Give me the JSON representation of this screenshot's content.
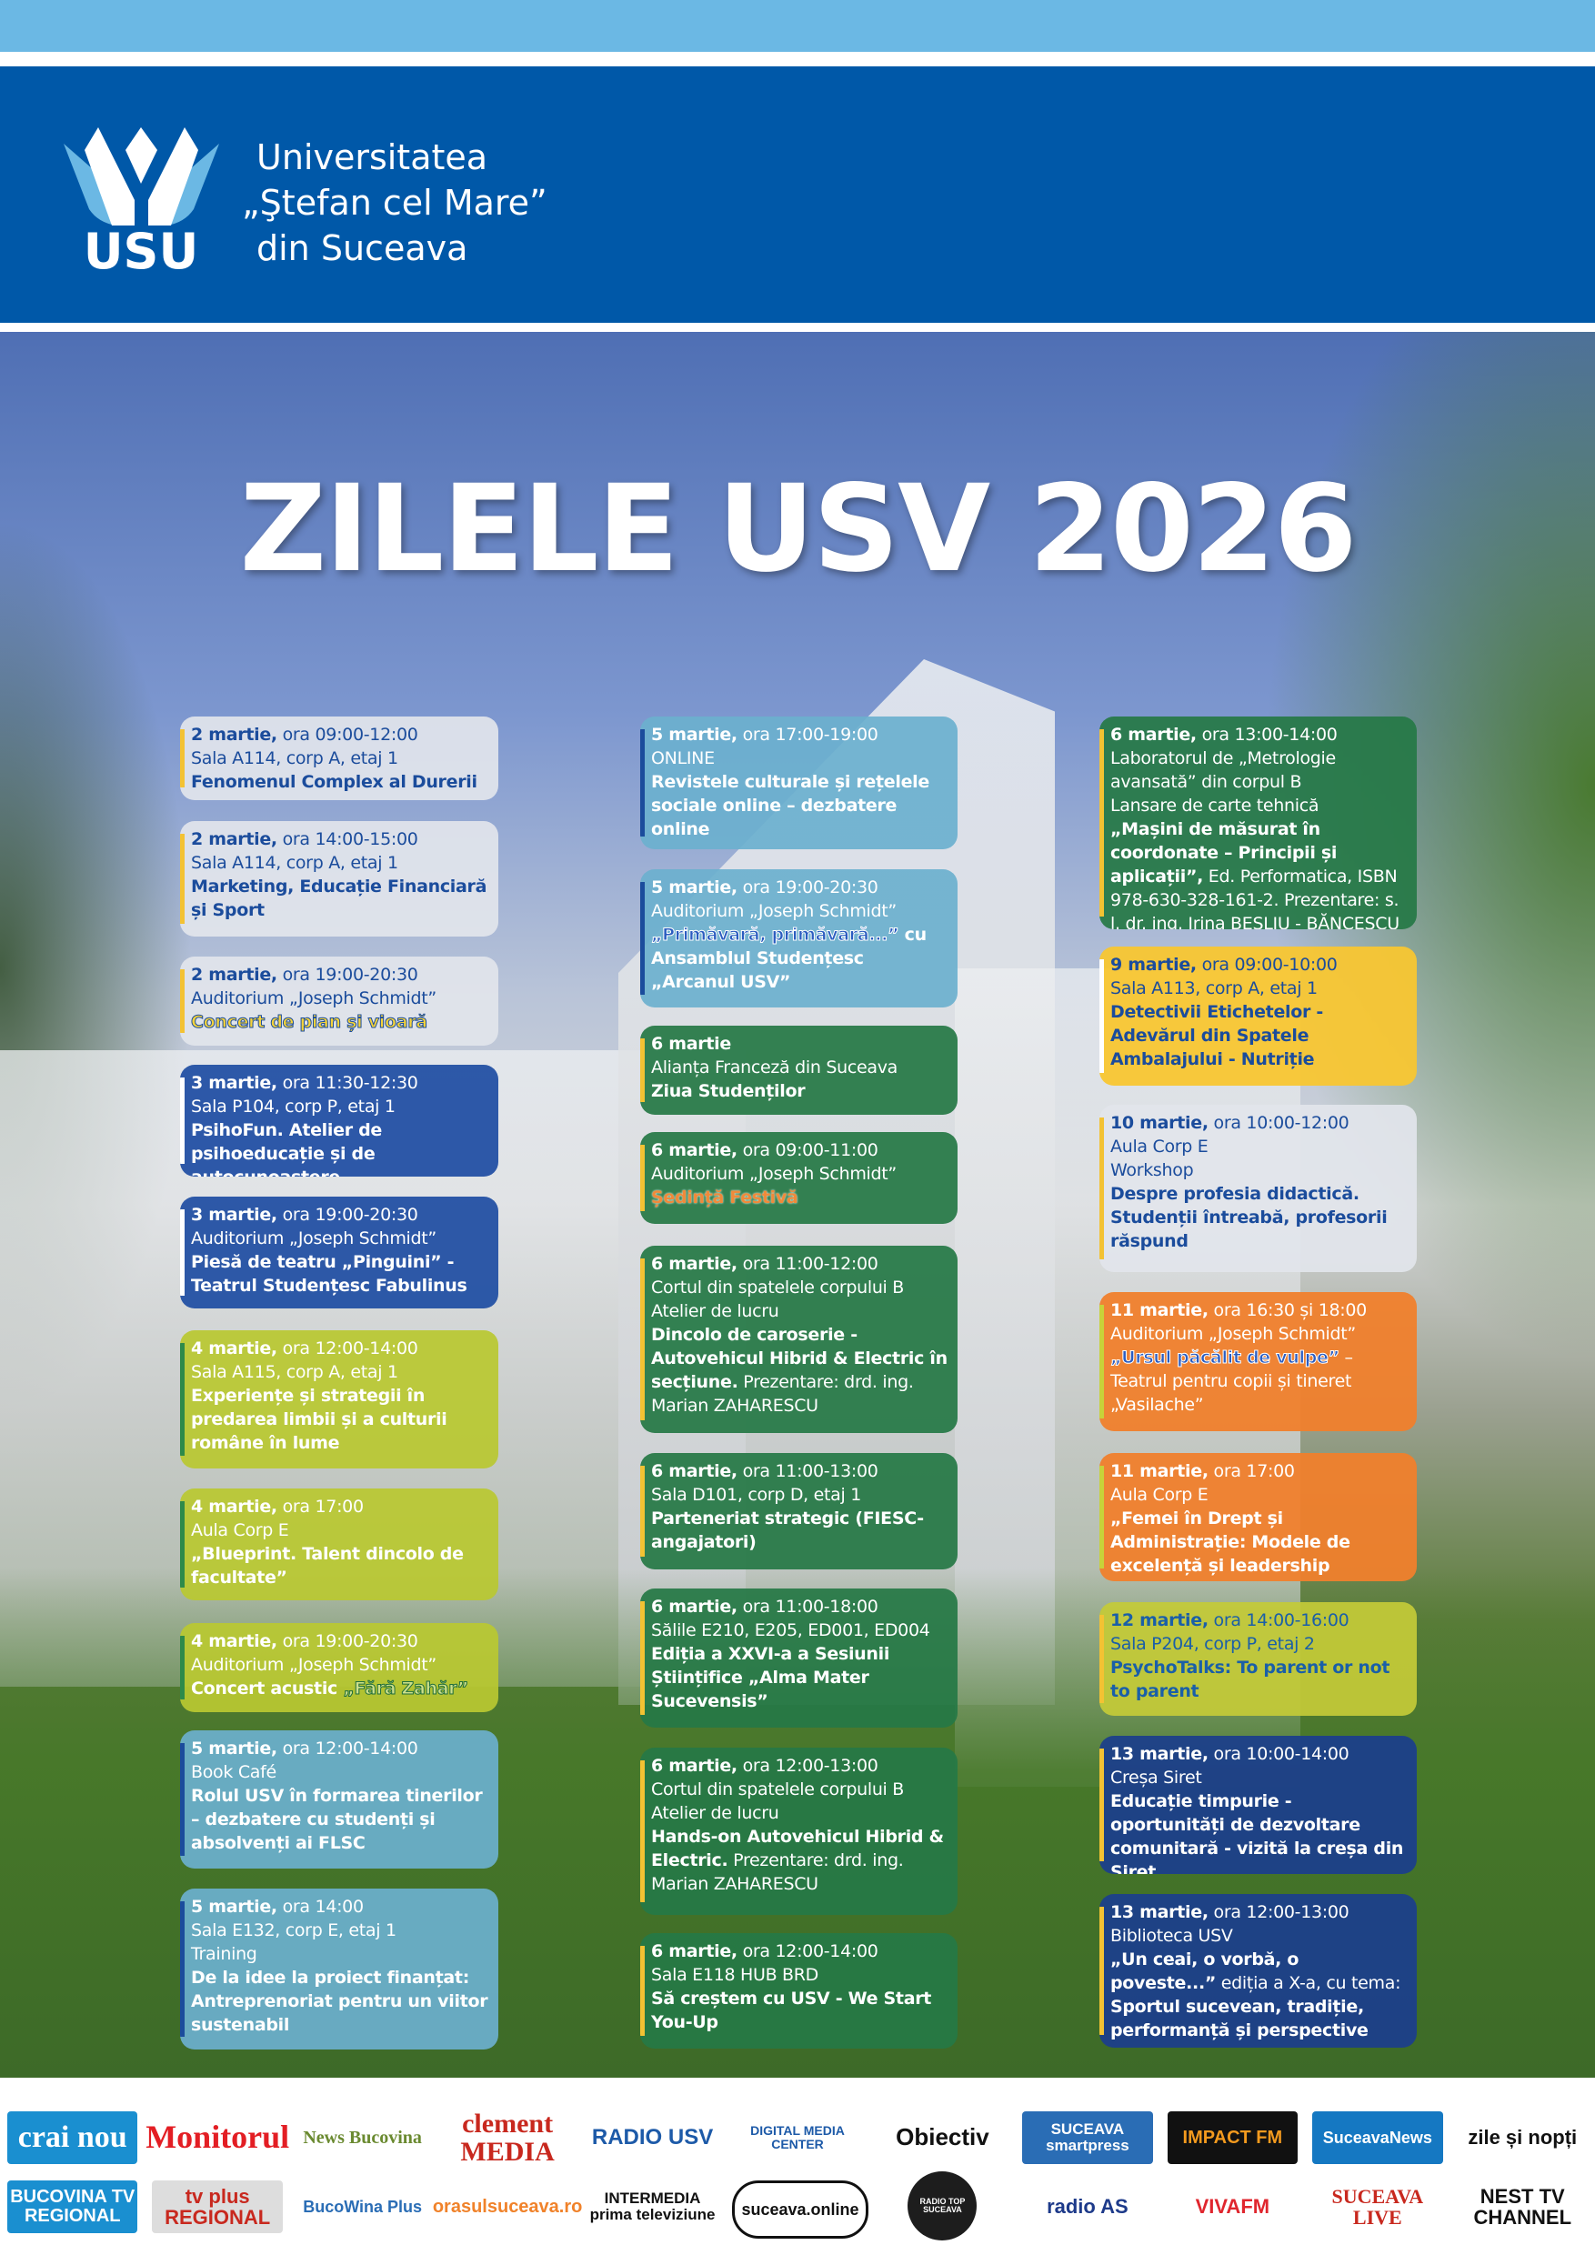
{
  "header": {
    "university_lines": [
      "Universitatea",
      "„Ştefan cel Mare”",
      "din Suceava"
    ],
    "logo_text": "USU",
    "colors": {
      "top_band": "#6bb8e4",
      "header": "#0058a8"
    }
  },
  "title": "ZILELE USV 2026",
  "themes": {
    "grey": {
      "bg": "rgba(226,229,236,0.92)",
      "fg": "#1b4c9c",
      "accent": "#f3c233"
    },
    "blue": {
      "bg": "rgba(31,78,163,0.93)",
      "fg": "#ffffff",
      "accent": "#ffffff"
    },
    "lime": {
      "bg": "rgba(185,200,50,0.93)",
      "fg": "#ffffff",
      "accent": "#2e8a4a"
    },
    "teal": {
      "bg": "rgba(107,176,206,0.92)",
      "fg": "#ffffff",
      "accent": "#1b4c9c"
    },
    "green": {
      "bg": "rgba(38,120,70,0.93)",
      "fg": "#ffffff",
      "accent": "#f3c233"
    },
    "yellow": {
      "bg": "rgba(248,198,50,0.95)",
      "fg": "#1b4c9c",
      "accent": "#ffffff"
    },
    "orange": {
      "bg": "rgba(240,128,44,0.95)",
      "fg": "#ffffff",
      "accent": "#c7d23a"
    },
    "limeb": {
      "bg": "rgba(196,202,56,0.93)",
      "fg": "#1a5fa8",
      "accent": "#f3c233"
    },
    "navy": {
      "bg": "rgba(28,63,138,0.95)",
      "fg": "#ffffff",
      "accent": "#f3c233"
    }
  },
  "columns": [
    [
      {
        "theme": "grey",
        "date": "2 martie,",
        "time": " ora 09:00-12:00",
        "location": "Sala A114, corp A, etaj 1",
        "title": [
          {
            "s": "b",
            "t": "Fenomenul Complex al Durerii"
          }
        ]
      },
      {
        "theme": "grey",
        "date": "2 martie,",
        "time": " ora 14:00-15:00",
        "location": "Sala A114, corp A, etaj 1",
        "title": [
          {
            "s": "b",
            "t": "Marketing, Educație Financiară și Sport"
          }
        ]
      },
      {
        "theme": "grey",
        "date": "2 martie,",
        "time": " ora 19:00-20:30",
        "location": "Auditorium „Joseph Schmidt”",
        "title": [
          {
            "s": "oy",
            "t": "Concert de pian și vioară"
          }
        ]
      },
      {
        "theme": "blue",
        "date": "3 martie,",
        "time": " ora 11:30-12:30",
        "location": "Sala P104, corp P, etaj 1",
        "title": [
          {
            "s": "b",
            "t": "PsihoFun. Atelier de psihoeducație și de autocunoaștere"
          }
        ]
      },
      {
        "theme": "blue",
        "date": "3 martie,",
        "time": " ora 19:00-20:30",
        "location": "Auditorium „Joseph Schmidt”",
        "title": [
          {
            "s": "b",
            "t": "Piesă de teatru „Pinguini” - Teatrul Studențesc Fabulinus"
          }
        ]
      },
      {
        "theme": "lime",
        "date": "4 martie,",
        "time": " ora 12:00-14:00",
        "location": "Sala A115, corp A, etaj 1",
        "title": [
          {
            "s": "b",
            "t": "Experiențe și strategii în predarea limbii și a culturii române în lume"
          }
        ]
      },
      {
        "theme": "lime",
        "date": "4 martie,",
        "time": " ora 17:00",
        "location": "Aula Corp E",
        "title": [
          {
            "s": "b",
            "t": "„Blueprint. Talent dincolo de facultate”"
          }
        ]
      },
      {
        "theme": "lime",
        "date": "4 martie,",
        "time": " ora 19:00-20:30",
        "location": "Auditorium „Joseph Schmidt”",
        "title": [
          {
            "s": "b",
            "t": "Concert acustic "
          },
          {
            "s": "og",
            "t": "„Fără Zahăr”"
          }
        ]
      },
      {
        "theme": "teal",
        "date": "5 martie,",
        "time": " ora 12:00-14:00",
        "location": "Book Café",
        "title": [
          {
            "s": "b",
            "t": "Rolul USV în formarea tinerilor – dezbatere cu studenți și absolvenți ai FLSC"
          }
        ]
      },
      {
        "theme": "teal",
        "date": "5 martie,",
        "time": " ora 14:00",
        "location": "Sala E132, corp E, etaj 1",
        "kind": "Training",
        "title": [
          {
            "s": "b",
            "t": "De la idee la proiect finanțat: Antreprenoriat pentru un viitor sustenabil"
          }
        ]
      }
    ],
    [
      {
        "theme": "teal",
        "date": "5 martie,",
        "time": " ora 17:00-19:00",
        "location": "ONLINE",
        "title": [
          {
            "s": "b",
            "t": "Revistele culturale și rețelele sociale online – dezbatere online"
          }
        ]
      },
      {
        "theme": "teal",
        "date": "5 martie,",
        "time": " ora 19:00-20:30",
        "location": "Auditorium „Joseph Schmidt”",
        "title": [
          {
            "s": "ob",
            "t": "„Primăvară, primăvară...”"
          },
          {
            "s": "b",
            "t": " cu Ansamblul Studențesc „Arcanul USV”"
          }
        ]
      },
      {
        "theme": "green",
        "date": "6 martie",
        "time": "",
        "location": "Alianța Franceză din Suceava",
        "title": [
          {
            "s": "b",
            "t": "Ziua Studenților"
          }
        ]
      },
      {
        "theme": "green",
        "date": "6 martie,",
        "time": " ora 09:00-11:00",
        "location": "Auditorium „Joseph Schmidt”",
        "title": [
          {
            "s": "or",
            "t": "Ședință Festivă"
          }
        ]
      },
      {
        "theme": "green",
        "date": "6 martie,",
        "time": " ora 11:00-12:00",
        "location": "Cortul din spatelele corpului B",
        "kind": "Atelier de lucru",
        "title": [
          {
            "s": "b",
            "t": "Dincolo de caroserie - Autovehicul Hibrid & Electric în secțiune."
          },
          {
            "s": "r",
            "t": " Prezentare: drd. ing. Marian ZAHARESCU"
          }
        ]
      },
      {
        "theme": "green",
        "date": "6 martie,",
        "time": " ora 11:00-13:00",
        "location": "Sala D101, corp D, etaj 1",
        "title": [
          {
            "s": "b",
            "t": "Parteneriat strategic (FIESC-angajatori)"
          }
        ]
      },
      {
        "theme": "green",
        "date": "6 martie,",
        "time": " ora 11:00-18:00",
        "location": "Sălile E210, E205, ED001, ED004",
        "title": [
          {
            "s": "b",
            "t": "Ediția a XXVI-a a Sesiunii Științifice „Alma Mater Sucevensis”"
          }
        ]
      },
      {
        "theme": "green",
        "date": "6 martie,",
        "time": " ora 12:00-13:00",
        "location": "Cortul din spatelele corpului B",
        "kind": "Atelier de lucru",
        "title": [
          {
            "s": "b",
            "t": "Hands-on Autovehicul Hibrid & Electric."
          },
          {
            "s": "r",
            "t": " Prezentare: drd. ing. Marian ZAHARESCU"
          }
        ]
      },
      {
        "theme": "green",
        "date": "6 martie,",
        "time": " ora 12:00-14:00",
        "location": "Sala E118 HUB BRD",
        "title": [
          {
            "s": "b",
            "t": "Să creștem cu USV - We Start You-Up"
          }
        ]
      }
    ],
    [
      {
        "theme": "green",
        "date": "6 martie,",
        "time": " ora 13:00-14:00",
        "location": "Laboratorul de „Metrologie avansată” din corpul B",
        "kind": "Lansare de carte tehnică",
        "title": [
          {
            "s": "b",
            "t": "„Mașini de măsurat în coordonate – Principii și aplicații”,"
          },
          {
            "s": "r",
            "t": " Ed. Performatica, ISBN 978-630-328-161-2. Prezentare: s. l. dr. ing. Irina BEȘLIU - BĂNCESCU"
          }
        ]
      },
      {
        "theme": "yellow",
        "date": "9 martie,",
        "time": " ora 09:00-10:00",
        "location": "Sala A113, corp A, etaj 1",
        "title": [
          {
            "s": "b",
            "t": "Detectivii Etichetelor - Adevărul din Spatele Ambalajului - Nutriție"
          }
        ]
      },
      {
        "theme": "grey",
        "date": "10 martie,",
        "time": " ora 10:00-12:00",
        "location": "Aula Corp E",
        "kind": "Workshop",
        "title": [
          {
            "s": "b",
            "t": "Despre profesia didactică. Studenții întreabă, profesorii răspund"
          }
        ]
      },
      {
        "theme": "orange",
        "date": "11 martie,",
        "time": " ora 16:30 și 18:00",
        "location": "Auditorium „Joseph Schmidt”",
        "title": [
          {
            "s": "ob",
            "t": "„Ursul păcălit de vulpe”"
          },
          {
            "s": "r",
            "t": " – Teatrul pentru copii și tineret „Vasilache”"
          }
        ]
      },
      {
        "theme": "orange",
        "date": "11 martie,",
        "time": " ora 17:00",
        "location": "Aula Corp E",
        "title": [
          {
            "s": "b",
            "t": "„Femei în Drept și Administrație: Modele de excelență și leadership instituțional”"
          }
        ]
      },
      {
        "theme": "limeb",
        "date": "12 martie,",
        "time": " ora 14:00-16:00",
        "location": "Sala P204, corp P, etaj 2",
        "title": [
          {
            "s": "b",
            "t": "PsychoTalks: To parent or not to parent"
          }
        ]
      },
      {
        "theme": "navy",
        "date": "13 martie,",
        "time": " ora 10:00-14:00",
        "location": "Creșa Siret",
        "title": [
          {
            "s": "b",
            "t": "Educație timpurie - oportunități de dezvoltare comunitară - vizită la creșa din Siret"
          }
        ]
      },
      {
        "theme": "navy",
        "date": "13 martie,",
        "time": " ora 12:00-13:00",
        "location": "Biblioteca USV",
        "title": [
          {
            "s": "b",
            "t": "„Un ceai, o vorbă, o poveste...”"
          },
          {
            "s": "r",
            "t": " ediția a X-a, cu tema: "
          },
          {
            "s": "b",
            "t": "Sportul sucevean, tradiție, performanță și perspective"
          }
        ]
      }
    ]
  ],
  "sponsors": {
    "row1": [
      "crai nou",
      "Monitorul",
      "News Bucovina",
      "clement MEDIA",
      "RADIO USV",
      "DIGITAL MEDIA CENTER",
      "Obiectiv",
      "SUCEAVA smartpress",
      "IMPACT FM",
      "SuceavaNews",
      "zile și nopți"
    ],
    "row2": [
      "BUCOVINA TV REGIONAL",
      "tv plus REGIONAL",
      "BucoWina Plus",
      "orasulsuceava.ro",
      "INTERMEDIA prima televiziune",
      "suceava.online",
      "RADIO TOP SUCEAVA",
      "radio AS",
      "VIVAFM",
      "SUCEAVA LIVE",
      "NEST TV CHANNEL"
    ]
  }
}
